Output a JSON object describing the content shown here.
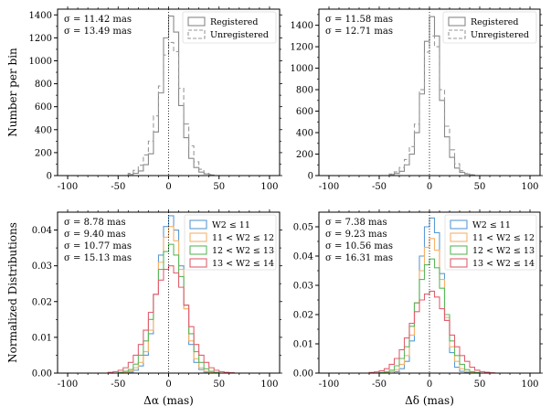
{
  "chart_data": [
    {
      "type": "histogram",
      "panel": "top-left",
      "ylabel": "Number per bin",
      "xlabel": "",
      "xlim": [
        -110,
        110
      ],
      "ylim": [
        0,
        1450
      ],
      "xticks": [
        -100,
        -50,
        0,
        50,
        100
      ],
      "yticks": [
        0,
        200,
        400,
        600,
        800,
        1000,
        1200,
        1400
      ],
      "bin_edges": [
        -40,
        -35,
        -30,
        -25,
        -20,
        -15,
        -10,
        -5,
        0,
        5,
        10,
        15,
        20,
        25,
        30,
        35,
        40,
        45
      ],
      "annotations": [
        "σ = 11.42 mas",
        "σ = 13.49 mas"
      ],
      "legend_position": "top-right",
      "series": [
        {
          "name": "Registered",
          "color": "#888888",
          "style": "solid",
          "values": [
            10,
            20,
            40,
            95,
            190,
            380,
            720,
            1200,
            1390,
            1250,
            610,
            330,
            150,
            70,
            30,
            15,
            5
          ]
        },
        {
          "name": "Unregistered",
          "color": "#999999",
          "style": "dashed",
          "values": [
            20,
            45,
            90,
            180,
            300,
            520,
            780,
            1050,
            1160,
            1080,
            760,
            450,
            260,
            120,
            55,
            20,
            10
          ]
        }
      ]
    },
    {
      "type": "histogram",
      "panel": "top-right",
      "ylabel": "",
      "xlabel": "",
      "xlim": [
        -110,
        110
      ],
      "ylim": [
        0,
        1550
      ],
      "xticks": [
        -100,
        -50,
        0,
        50,
        100
      ],
      "yticks": [
        0,
        200,
        400,
        600,
        800,
        1000,
        1200,
        1400
      ],
      "bin_edges": [
        -40,
        -35,
        -30,
        -25,
        -20,
        -15,
        -10,
        -5,
        0,
        5,
        10,
        15,
        20,
        25,
        30,
        35,
        40,
        45
      ],
      "annotations": [
        "σ = 11.58 mas",
        "σ = 12.71 mas"
      ],
      "legend_position": "top-right",
      "series": [
        {
          "name": "Registered",
          "color": "#888888",
          "style": "solid",
          "values": [
            10,
            20,
            40,
            100,
            200,
            400,
            760,
            1250,
            1480,
            1300,
            700,
            360,
            170,
            70,
            30,
            15,
            5
          ]
        },
        {
          "name": "Unregistered",
          "color": "#999999",
          "style": "dashed",
          "values": [
            15,
            35,
            75,
            150,
            270,
            480,
            800,
            1150,
            1300,
            1200,
            800,
            460,
            240,
            110,
            45,
            20,
            8
          ]
        }
      ]
    },
    {
      "type": "histogram",
      "panel": "bottom-left",
      "ylabel": "Normalized Distributions",
      "xlabel": "Δα (mas)",
      "xlim": [
        -110,
        110
      ],
      "ylim": [
        0,
        0.045
      ],
      "xticks": [
        -100,
        -50,
        0,
        50,
        100
      ],
      "yticks": [
        0.0,
        0.01,
        0.02,
        0.03,
        0.04
      ],
      "bin_edges": [
        -60,
        -55,
        -50,
        -45,
        -40,
        -35,
        -30,
        -25,
        -20,
        -15,
        -10,
        -5,
        0,
        5,
        10,
        15,
        20,
        25,
        30,
        35,
        40,
        45,
        50,
        55,
        60,
        65,
        70
      ],
      "annotations": [
        "σ = 8.78 mas",
        "σ = 9.40 mas",
        "σ = 10.77 mas",
        "σ = 15.13 mas"
      ],
      "legend_position": "top-right",
      "series": [
        {
          "name": "W2 ≤ 11",
          "color": "#5b9bd5",
          "values": [
            0,
            0,
            0,
            0,
            0.0003,
            0.0008,
            0.002,
            0.005,
            0.011,
            0.022,
            0.033,
            0.041,
            0.044,
            0.04,
            0.03,
            0.018,
            0.008,
            0.003,
            0.001,
            0.0003,
            0,
            0,
            0,
            0,
            0,
            0
          ]
        },
        {
          "name": "11 < W2 ≤ 12",
          "color": "#f5b26b",
          "values": [
            0,
            0,
            0,
            0.0002,
            0.0006,
            0.0015,
            0.003,
            0.006,
            0.012,
            0.022,
            0.031,
            0.038,
            0.041,
            0.037,
            0.029,
            0.018,
            0.009,
            0.004,
            0.0015,
            0.0005,
            0.0002,
            0,
            0,
            0,
            0,
            0
          ]
        },
        {
          "name": "12 < W2 ≤ 13",
          "color": "#5cb85c",
          "values": [
            0,
            0,
            0.0002,
            0.0005,
            0.001,
            0.0025,
            0.005,
            0.009,
            0.015,
            0.022,
            0.029,
            0.034,
            0.036,
            0.033,
            0.027,
            0.019,
            0.011,
            0.006,
            0.003,
            0.0012,
            0.0005,
            0.0002,
            0,
            0,
            0,
            0
          ]
        },
        {
          "name": "13 < W2 ≤ 14",
          "color": "#e06070",
          "values": [
            0.0002,
            0.0004,
            0.0008,
            0.0015,
            0.003,
            0.005,
            0.008,
            0.012,
            0.017,
            0.022,
            0.026,
            0.029,
            0.03,
            0.028,
            0.024,
            0.019,
            0.013,
            0.008,
            0.005,
            0.003,
            0.0015,
            0.0008,
            0.0004,
            0.0002,
            0.0001,
            0
          ]
        }
      ]
    },
    {
      "type": "histogram",
      "panel": "bottom-right",
      "ylabel": "",
      "xlabel": "Δδ (mas)",
      "xlim": [
        -110,
        110
      ],
      "ylim": [
        0,
        0.055
      ],
      "xticks": [
        -100,
        -50,
        0,
        50,
        100
      ],
      "yticks": [
        0.0,
        0.01,
        0.02,
        0.03,
        0.04,
        0.05
      ],
      "bin_edges": [
        -60,
        -55,
        -50,
        -45,
        -40,
        -35,
        -30,
        -25,
        -20,
        -15,
        -10,
        -5,
        0,
        5,
        10,
        15,
        20,
        25,
        30,
        35,
        40,
        45,
        50,
        55,
        60,
        65,
        70
      ],
      "annotations": [
        "σ = 7.38 mas",
        "σ = 9.23 mas",
        "σ = 10.56 mas",
        "σ = 16.31 mas"
      ],
      "legend_position": "top-right",
      "series": [
        {
          "name": "W2 ≤ 11",
          "color": "#5b9bd5",
          "values": [
            0,
            0,
            0,
            0,
            0,
            0.0005,
            0.0015,
            0.004,
            0.011,
            0.024,
            0.04,
            0.05,
            0.053,
            0.048,
            0.034,
            0.018,
            0.007,
            0.002,
            0.0006,
            0.0002,
            0,
            0,
            0,
            0,
            0,
            0
          ]
        },
        {
          "name": "11 < W2 ≤ 12",
          "color": "#f5b26b",
          "values": [
            0,
            0,
            0,
            0.0002,
            0.0005,
            0.0012,
            0.003,
            0.006,
            0.013,
            0.024,
            0.035,
            0.043,
            0.046,
            0.042,
            0.032,
            0.019,
            0.009,
            0.004,
            0.0015,
            0.0005,
            0.0002,
            0,
            0,
            0,
            0,
            0
          ]
        },
        {
          "name": "12 < W2 ≤ 13",
          "color": "#5cb85c",
          "values": [
            0,
            0,
            0.0002,
            0.0004,
            0.001,
            0.0025,
            0.005,
            0.009,
            0.016,
            0.024,
            0.032,
            0.037,
            0.039,
            0.036,
            0.029,
            0.02,
            0.011,
            0.006,
            0.003,
            0.0012,
            0.0005,
            0.0002,
            0,
            0,
            0,
            0
          ]
        },
        {
          "name": "13 < W2 ≤ 14",
          "color": "#e06070",
          "values": [
            0.0002,
            0.0004,
            0.0008,
            0.0015,
            0.003,
            0.005,
            0.008,
            0.012,
            0.017,
            0.021,
            0.025,
            0.027,
            0.028,
            0.026,
            0.022,
            0.018,
            0.013,
            0.009,
            0.006,
            0.004,
            0.002,
            0.001,
            0.0005,
            0.0003,
            0.0001,
            0
          ]
        }
      ]
    }
  ]
}
